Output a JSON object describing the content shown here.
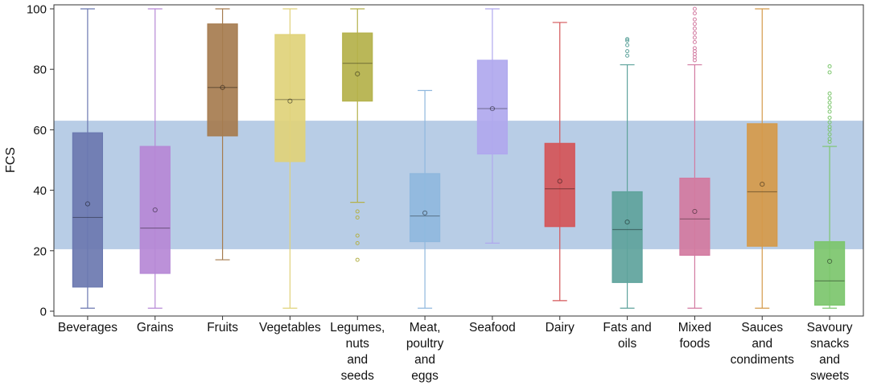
{
  "chart_data": {
    "type": "boxplot",
    "title": "",
    "xlabel": "",
    "ylabel": "FCS",
    "ylim": [
      0,
      100
    ],
    "yticks": [
      0,
      20,
      40,
      60,
      80,
      100
    ],
    "grid": false,
    "reference_band": {
      "low": 20.5,
      "high": 63,
      "color": "#b8cde6"
    },
    "categories": [
      {
        "label_lines": [
          "Beverages"
        ],
        "color": "#6b78b0",
        "whisker_low": 1,
        "q1": 8,
        "median": 31,
        "q3": 59,
        "whisker_high": 100,
        "mean": 35.5,
        "outliers": []
      },
      {
        "label_lines": [
          "Grains"
        ],
        "color": "#b688d6",
        "whisker_low": 1,
        "q1": 12.5,
        "median": 27.5,
        "q3": 54.5,
        "whisker_high": 100,
        "mean": 33.5,
        "outliers": []
      },
      {
        "label_lines": [
          "Fruits"
        ],
        "color": "#a67c4f",
        "whisker_low": 17,
        "q1": 58,
        "median": 74,
        "q3": 95,
        "whisker_high": 100,
        "mean": 74,
        "outliers": []
      },
      {
        "label_lines": [
          "Vegetables"
        ],
        "color": "#e0d27a",
        "whisker_low": 1,
        "q1": 49.5,
        "median": 70,
        "q3": 91.5,
        "whisker_high": 100,
        "mean": 69.5,
        "outliers": []
      },
      {
        "label_lines": [
          "Legumes,",
          "nuts",
          "and",
          "seeds"
        ],
        "color": "#b4b14a",
        "whisker_low": 36,
        "q1": 69.5,
        "median": 82,
        "q3": 92,
        "whisker_high": 100,
        "mean": 78.5,
        "outliers": [
          33,
          31,
          25,
          22.5,
          17
        ]
      },
      {
        "label_lines": [
          "Meat,",
          "poultry",
          "and",
          "eggs"
        ],
        "color": "#8fb8de",
        "whisker_low": 1,
        "q1": 23,
        "median": 31.5,
        "q3": 45.5,
        "whisker_high": 73,
        "mean": 32.5,
        "outliers": []
      },
      {
        "label_lines": [
          "Seafood"
        ],
        "color": "#b0a8ee",
        "whisker_low": 22.5,
        "q1": 52,
        "median": 67,
        "q3": 83,
        "whisker_high": 100,
        "mean": 67,
        "outliers": []
      },
      {
        "label_lines": [
          "Dairy"
        ],
        "color": "#d45558",
        "whisker_low": 3.5,
        "q1": 28,
        "median": 40.5,
        "q3": 55.5,
        "whisker_high": 95.5,
        "mean": 43,
        "outliers": []
      },
      {
        "label_lines": [
          "Fats and",
          "oils"
        ],
        "color": "#5ea39c",
        "whisker_low": 1,
        "q1": 9.5,
        "median": 27,
        "q3": 39.5,
        "whisker_high": 81.5,
        "mean": 29.5,
        "outliers": [
          84.5,
          86,
          88,
          89.5,
          90
        ]
      },
      {
        "label_lines": [
          "Mixed",
          "foods"
        ],
        "color": "#d27aa0",
        "whisker_low": 1,
        "q1": 18.5,
        "median": 30.5,
        "q3": 44,
        "whisker_high": 81.5,
        "mean": 33,
        "outliers": [
          83,
          84,
          85,
          86,
          87,
          89,
          90.5,
          92,
          93.5,
          95,
          96.5,
          98.5,
          100
        ]
      },
      {
        "label_lines": [
          "Sauces",
          "and",
          "condiments"
        ],
        "color": "#d59a4a",
        "whisker_low": 1,
        "q1": 21.5,
        "median": 39.5,
        "q3": 62,
        "whisker_high": 100,
        "mean": 42,
        "outliers": []
      },
      {
        "label_lines": [
          "Savoury",
          "snacks",
          "and",
          "sweets"
        ],
        "color": "#7cc66d",
        "whisker_low": 1,
        "q1": 2,
        "median": 10,
        "q3": 23,
        "whisker_high": 54.5,
        "mean": 16.5,
        "outliers": [
          56,
          57,
          58.5,
          60,
          61,
          62.5,
          64,
          66,
          67.5,
          69,
          70.5,
          72,
          79,
          81
        ]
      }
    ]
  }
}
